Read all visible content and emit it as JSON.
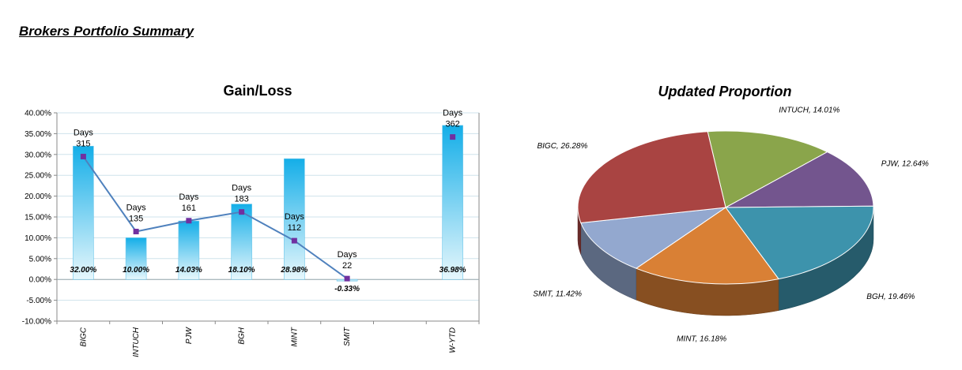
{
  "page": {
    "title": "Brokers Portfolio Summary"
  },
  "chart_data": [
    {
      "type": "bar",
      "title": "Gain/Loss",
      "xlabel": "",
      "ylabel": "",
      "ylim": [
        -0.1,
        0.4
      ],
      "yticks": [
        -0.1,
        -0.05,
        0.0,
        0.05,
        0.1,
        0.15,
        0.2,
        0.25,
        0.3,
        0.35,
        0.4
      ],
      "ytick_labels": [
        "-10.00%",
        "-5.00%",
        "0.00%",
        "5.00%",
        "10.00%",
        "15.00%",
        "20.00%",
        "25.00%",
        "30.00%",
        "35.00%",
        "40.00%"
      ],
      "categories": [
        "BIGC",
        "INTUCH",
        "PJW",
        "BGH",
        "MINT",
        "SMIT",
        "",
        "W-YTD"
      ],
      "values": [
        0.32,
        0.1,
        0.1403,
        0.181,
        0.2898,
        -0.0033,
        null,
        0.3698
      ],
      "value_labels": [
        "32.00%",
        "10.00%",
        "14.03%",
        "18.10%",
        "28.98%",
        "-0.33%",
        "",
        "36.98%"
      ],
      "days_series": {
        "label": "Days",
        "values": [
          315,
          135,
          161,
          183,
          112,
          22,
          null,
          362
        ],
        "plotted_at": [
          0.295,
          0.115,
          0.141,
          0.162,
          0.093,
          0.002,
          null,
          0.342
        ],
        "line_connects": [
          0,
          1,
          2,
          3,
          4,
          5
        ]
      },
      "grid": true,
      "colors": {
        "bar_top": "#14aee8",
        "bar_bottom": "#e7f7fc",
        "line": "#4f81bd",
        "marker": "#7030a0",
        "grid": "#cfe3ec"
      }
    },
    {
      "type": "pie",
      "title": "Updated Proportion",
      "labels": [
        "INTUCH",
        "PJW",
        "BGH",
        "MINT",
        "SMIT",
        "BIGC"
      ],
      "values": [
        14.01,
        12.64,
        19.46,
        16.18,
        11.42,
        26.28
      ],
      "value_labels": [
        "INTUCH, 14.01%",
        "PJW, 12.64%",
        "BGH, 19.46%",
        "MINT, 16.18%",
        "SMIT, 11.42%",
        "BIGC, 26.28%"
      ],
      "colors": [
        "#8aa54b",
        "#73558e",
        "#3d93ac",
        "#d98035",
        "#93a8cf",
        "#a94442"
      ]
    }
  ]
}
